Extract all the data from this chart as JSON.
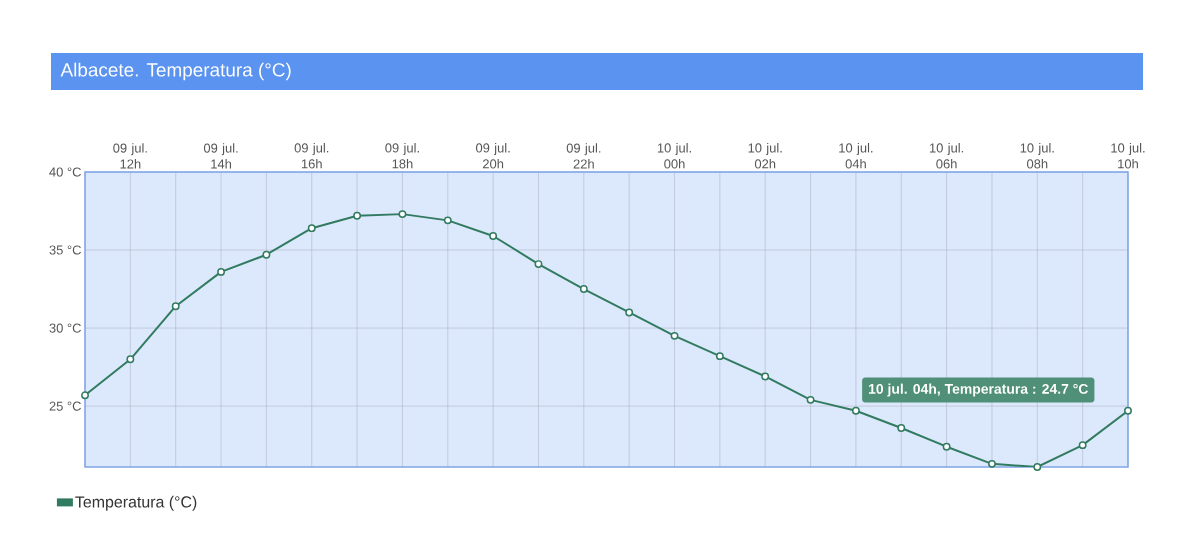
{
  "chart_data": {
    "type": "line",
    "title": "Albacete. Temperatura (°C)",
    "categories": [
      null,
      "09 jul. 12h",
      null,
      "09 jul. 14h",
      null,
      "09 jul. 16h",
      null,
      "09 jul. 18h",
      null,
      "09 jul. 20h",
      null,
      "09 jul. 22h",
      null,
      "10 jul. 00h",
      null,
      "10 jul. 02h",
      null,
      "10 jul. 04h",
      null,
      "10 jul. 06h",
      null,
      "10 jul. 08h",
      null,
      "10 jul. 10h"
    ],
    "series": [
      {
        "name": "Temperatura (°C)",
        "color": "#317b60",
        "values": [
          25.7,
          28.0,
          31.4,
          33.6,
          34.7,
          36.4,
          37.2,
          37.3,
          36.9,
          35.9,
          34.1,
          32.5,
          31.0,
          29.5,
          28.2,
          26.9,
          25.4,
          24.7,
          23.6,
          22.4,
          21.3,
          21.1,
          22.5,
          24.7
        ]
      }
    ],
    "ylim": [
      21.1,
      40
    ],
    "yticks": [
      {
        "value": 25,
        "label": "25 °C"
      },
      {
        "value": 30,
        "label": "30 °C"
      },
      {
        "value": 35,
        "label": "35 °C"
      },
      {
        "value": 40,
        "label": "40 °C"
      }
    ],
    "grid": true,
    "legend": "bottom left",
    "marker": "circle",
    "line_style": "solid",
    "annotations": [
      {
        "text": "10 jul. 04h, Temperatura : 24.7 °C",
        "x": "10 jul. 04h",
        "y": 24.7
      }
    ]
  }
}
